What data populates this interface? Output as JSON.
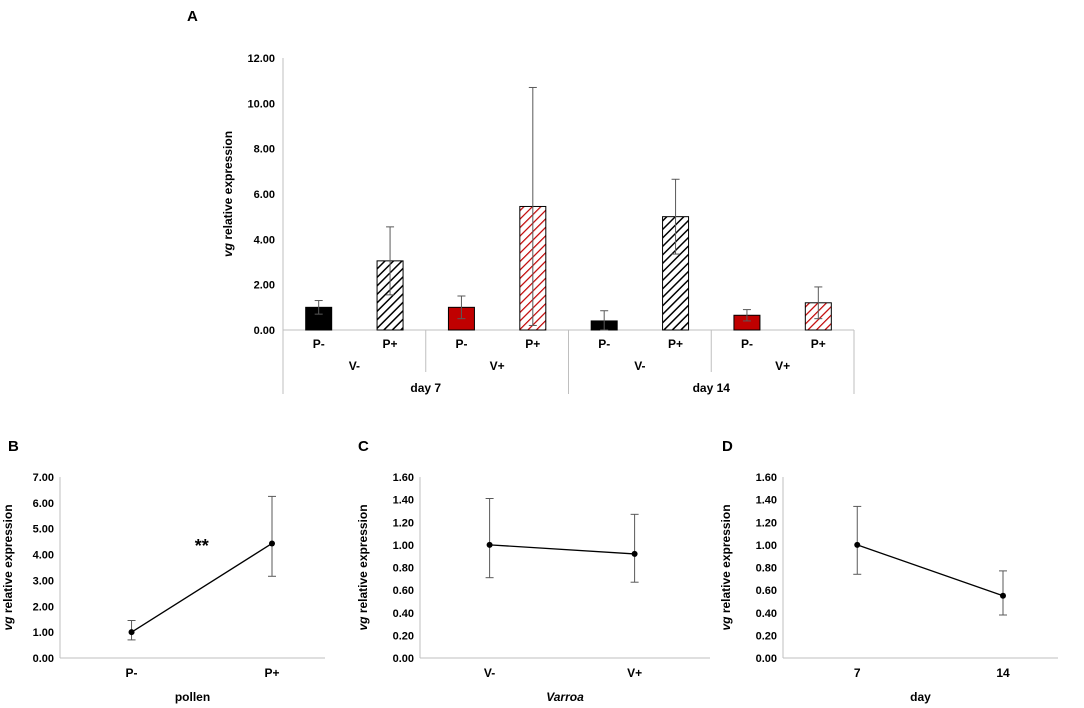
{
  "colors": {
    "black": "#000000",
    "red": "#c00000",
    "axis": "#bfbfbf",
    "error": "#595959",
    "hatch_pink": "#f4a8a8"
  },
  "chart_data": [
    {
      "panel": "A",
      "type": "bar",
      "ylabel_italic": "vg",
      "ylabel_rest": " relative expression",
      "ylim": [
        0,
        12
      ],
      "yticks": [
        "0.00",
        "2.00",
        "4.00",
        "6.00",
        "8.00",
        "10.00",
        "12.00"
      ],
      "grid": false,
      "bars": [
        {
          "label": "P-",
          "group": "V-",
          "day": "day 7",
          "value": 1.0,
          "err": 0.3,
          "fill": "black",
          "hatched": false
        },
        {
          "label": "P+",
          "group": "V-",
          "day": "day 7",
          "value": 3.05,
          "err": 1.5,
          "fill": "black",
          "hatched": true
        },
        {
          "label": "P-",
          "group": "V+",
          "day": "day 7",
          "value": 1.0,
          "err": 0.5,
          "fill": "red",
          "hatched": false
        },
        {
          "label": "P+",
          "group": "V+",
          "day": "day 7",
          "value": 5.45,
          "err": 5.25,
          "fill": "red",
          "hatched": true
        },
        {
          "label": "P-",
          "group": "V-",
          "day": "day 14",
          "value": 0.4,
          "err": 0.45,
          "fill": "black",
          "hatched": false
        },
        {
          "label": "P+",
          "group": "V-",
          "day": "day 14",
          "value": 5.0,
          "err": 1.65,
          "fill": "black",
          "hatched": true
        },
        {
          "label": "P-",
          "group": "V+",
          "day": "day 14",
          "value": 0.65,
          "err": 0.25,
          "fill": "red",
          "hatched": false
        },
        {
          "label": "P+",
          "group": "V+",
          "day": "day 14",
          "value": 1.2,
          "err": 0.7,
          "fill": "red",
          "hatched": true
        }
      ],
      "groups": [
        "V-",
        "V+",
        "V-",
        "V+"
      ],
      "days": [
        "day 7",
        "day 14"
      ]
    },
    {
      "panel": "B",
      "type": "line",
      "xlabel": "pollen",
      "xlabel_italic": false,
      "ylabel_italic": "vg",
      "ylabel_rest": " relative expression",
      "categories": [
        "P-",
        "P+"
      ],
      "values": [
        1.0,
        4.43
      ],
      "err_low": [
        0.3,
        1.27
      ],
      "err_high": [
        0.45,
        1.82
      ],
      "ylim": [
        0,
        7
      ],
      "yticks": [
        "0.00",
        "1.00",
        "2.00",
        "3.00",
        "4.00",
        "5.00",
        "6.00",
        "7.00"
      ],
      "annotation": "**",
      "annotation_x": 0.5,
      "annotation_y": 4.1
    },
    {
      "panel": "C",
      "type": "line",
      "xlabel": "Varroa",
      "xlabel_italic": true,
      "ylabel_italic": "vg",
      "ylabel_rest": " relative expression",
      "categories": [
        "V-",
        "V+"
      ],
      "values": [
        1.0,
        0.92
      ],
      "err_low": [
        0.29,
        0.25
      ],
      "err_high": [
        0.41,
        0.35
      ],
      "ylim": [
        0,
        1.6
      ],
      "yticks": [
        "0.00",
        "0.20",
        "0.40",
        "0.60",
        "0.80",
        "1.00",
        "1.20",
        "1.40",
        "1.60"
      ],
      "annotation": ""
    },
    {
      "panel": "D",
      "type": "line",
      "xlabel": "day",
      "xlabel_italic": false,
      "ylabel_italic": "vg",
      "ylabel_rest": " relative expression",
      "categories": [
        "7",
        "14"
      ],
      "values": [
        1.0,
        0.55
      ],
      "err_low": [
        0.26,
        0.17
      ],
      "err_high": [
        0.34,
        0.22
      ],
      "ylim": [
        0,
        1.6
      ],
      "yticks": [
        "0.00",
        "0.20",
        "0.40",
        "0.60",
        "0.80",
        "1.00",
        "1.20",
        "1.40",
        "1.60"
      ],
      "annotation": ""
    }
  ]
}
